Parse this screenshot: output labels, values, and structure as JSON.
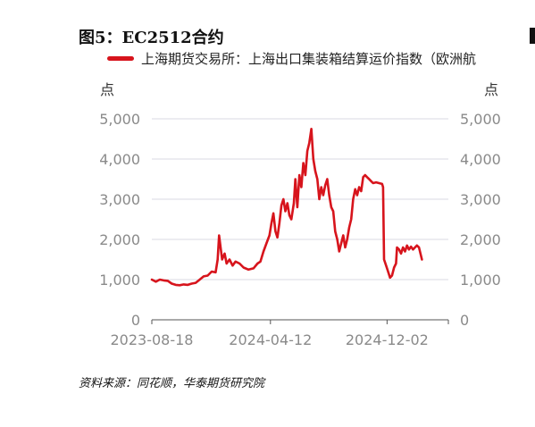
{
  "title": "图5：EC2512合约",
  "legend_label": "上海期货交易所：上海出口集装箱结算运价指数（欧洲航",
  "unit_left": "点",
  "unit_right": "点",
  "source": "资料来源：同花顺，华泰期货研究院",
  "chart_data": {
    "type": "line",
    "title": "EC2512合约",
    "ylim": [
      0,
      5000
    ],
    "y_ticks": [
      0,
      1000,
      2000,
      3000,
      4000,
      5000
    ],
    "y_tick_labels": [
      "0",
      "1,000",
      "2,000",
      "3,000",
      "4,000",
      "5,000"
    ],
    "x_tick_labels": [
      "2023-08-18",
      "2024-04-12",
      "2024-12-02"
    ],
    "x_tick_days": [
      0,
      238,
      472
    ],
    "x_range_days": [
      0,
      595
    ],
    "grid": true,
    "series": [
      {
        "name": "上海期货交易所：上海出口集装箱结算运价指数（欧洲航",
        "color": "#d7141c",
        "points": [
          [
            0,
            1000
          ],
          [
            8,
            950
          ],
          [
            16,
            1000
          ],
          [
            24,
            980
          ],
          [
            32,
            970
          ],
          [
            40,
            900
          ],
          [
            48,
            870
          ],
          [
            56,
            860
          ],
          [
            64,
            880
          ],
          [
            72,
            870
          ],
          [
            80,
            900
          ],
          [
            88,
            920
          ],
          [
            96,
            1000
          ],
          [
            104,
            1080
          ],
          [
            112,
            1100
          ],
          [
            120,
            1200
          ],
          [
            128,
            1180
          ],
          [
            132,
            1500
          ],
          [
            135,
            2100
          ],
          [
            138,
            1800
          ],
          [
            141,
            1500
          ],
          [
            146,
            1650
          ],
          [
            150,
            1400
          ],
          [
            156,
            1500
          ],
          [
            162,
            1350
          ],
          [
            168,
            1450
          ],
          [
            176,
            1400
          ],
          [
            184,
            1300
          ],
          [
            194,
            1250
          ],
          [
            204,
            1280
          ],
          [
            212,
            1400
          ],
          [
            218,
            1450
          ],
          [
            224,
            1700
          ],
          [
            230,
            1900
          ],
          [
            236,
            2100
          ],
          [
            240,
            2400
          ],
          [
            244,
            2650
          ],
          [
            248,
            2200
          ],
          [
            252,
            2050
          ],
          [
            256,
            2400
          ],
          [
            260,
            2850
          ],
          [
            264,
            3000
          ],
          [
            268,
            2700
          ],
          [
            272,
            2900
          ],
          [
            276,
            2600
          ],
          [
            280,
            2500
          ],
          [
            285,
            2900
          ],
          [
            288,
            3500
          ],
          [
            292,
            2800
          ],
          [
            296,
            3600
          ],
          [
            300,
            3300
          ],
          [
            304,
            3900
          ],
          [
            308,
            3600
          ],
          [
            312,
            4200
          ],
          [
            316,
            4400
          ],
          [
            320,
            4750
          ],
          [
            324,
            4000
          ],
          [
            328,
            3700
          ],
          [
            332,
            3500
          ],
          [
            336,
            3000
          ],
          [
            340,
            3300
          ],
          [
            344,
            3100
          ],
          [
            348,
            3350
          ],
          [
            352,
            3500
          ],
          [
            356,
            3100
          ],
          [
            360,
            2800
          ],
          [
            364,
            2700
          ],
          [
            368,
            2200
          ],
          [
            372,
            2000
          ],
          [
            376,
            1700
          ],
          [
            380,
            1900
          ],
          [
            384,
            2100
          ],
          [
            388,
            1800
          ],
          [
            392,
            2000
          ],
          [
            396,
            2300
          ],
          [
            400,
            2500
          ],
          [
            404,
            3000
          ],
          [
            408,
            3250
          ],
          [
            412,
            3100
          ],
          [
            416,
            3300
          ],
          [
            420,
            3200
          ],
          [
            424,
            3550
          ],
          [
            428,
            3600
          ],
          [
            432,
            3550
          ],
          [
            436,
            3500
          ],
          [
            440,
            3450
          ],
          [
            444,
            3400
          ],
          [
            450,
            3420
          ],
          [
            456,
            3400
          ],
          [
            462,
            3380
          ],
          [
            464,
            3300
          ],
          [
            466,
            1500
          ],
          [
            470,
            1350
          ],
          [
            474,
            1200
          ],
          [
            478,
            1050
          ],
          [
            482,
            1100
          ],
          [
            486,
            1300
          ],
          [
            490,
            1400
          ],
          [
            492,
            1800
          ],
          [
            496,
            1750
          ],
          [
            500,
            1650
          ],
          [
            504,
            1800
          ],
          [
            508,
            1700
          ],
          [
            512,
            1850
          ],
          [
            516,
            1750
          ],
          [
            520,
            1820
          ],
          [
            524,
            1750
          ],
          [
            528,
            1800
          ],
          [
            532,
            1850
          ],
          [
            536,
            1800
          ],
          [
            540,
            1600
          ],
          [
            542,
            1500
          ]
        ]
      }
    ]
  }
}
